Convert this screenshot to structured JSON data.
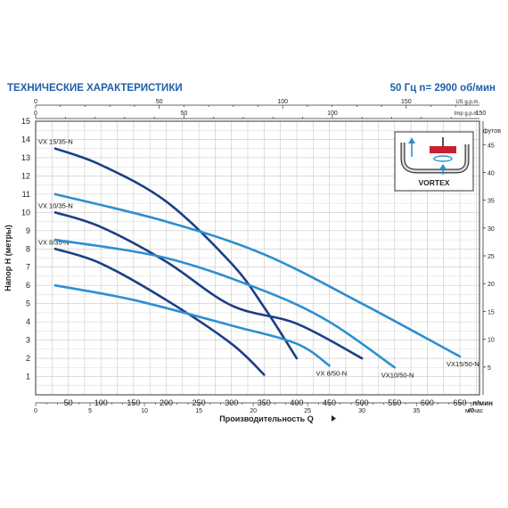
{
  "header": {
    "title": "ТЕХНИЧЕСКИЕ ХАРАКТЕРИСТИКИ",
    "spec": "50 Гц  n= 2900 об/мин"
  },
  "colors": {
    "dark_curve": "#1b3f86",
    "light_curve": "#2d8fd0",
    "grid": "#c8c8c8",
    "frame": "#333333",
    "title": "#1f5fa8"
  },
  "inset": {
    "label": "VORTEX"
  },
  "chart_data": {
    "type": "line",
    "grid": true,
    "xlabel": "Производительность  Q",
    "ylabel": "Напор  H (метры)",
    "xlim_lpm": [
      0,
      680
    ],
    "ylim_m": [
      0,
      15
    ],
    "x_ticks_lpm": [
      50,
      100,
      150,
      200,
      250,
      300,
      350,
      400,
      450,
      500,
      550,
      600,
      650
    ],
    "x_unit_lpm": "л/мин",
    "x_ticks_m3h": [
      0,
      5,
      10,
      15,
      20,
      25,
      30,
      35,
      40
    ],
    "x_unit_m3h": "м³/час",
    "top_ticks_us": [
      0,
      50,
      100,
      150
    ],
    "top_unit_us": "US g.p.m.",
    "top_ticks_imp": [
      0,
      50,
      100,
      150
    ],
    "top_unit_imp": "Imp g.p.m.",
    "y_ticks_m": [
      1,
      2,
      3,
      4,
      5,
      6,
      7,
      8,
      9,
      10,
      11,
      12,
      13,
      14,
      15
    ],
    "y_ticks_ft": [
      5,
      10,
      15,
      20,
      25,
      30,
      35,
      40,
      45
    ],
    "y_unit_ft": "футов",
    "series": [
      {
        "name": "VX 15/35-N",
        "style": "dark",
        "x": [
          30,
          100,
          200,
          300,
          350,
          400
        ],
        "y": [
          13.5,
          12.6,
          10.6,
          7.2,
          4.8,
          2.0
        ],
        "label_end": "start"
      },
      {
        "name": "VX 10/35-N",
        "style": "dark",
        "x": [
          30,
          100,
          200,
          300,
          400,
          500
        ],
        "y": [
          10.0,
          9.2,
          7.3,
          4.9,
          3.9,
          2.0
        ],
        "label_end": "start"
      },
      {
        "name": "VX 8/35-N",
        "style": "dark",
        "x": [
          30,
          100,
          200,
          300,
          350
        ],
        "y": [
          8.0,
          7.2,
          5.2,
          2.8,
          1.1
        ],
        "label_end": "start"
      },
      {
        "name": "VX15/50-N",
        "style": "light",
        "x": [
          30,
          200,
          350,
          500,
          650
        ],
        "y": [
          11.0,
          9.5,
          7.7,
          5.0,
          2.1
        ],
        "label_end": "end"
      },
      {
        "name": "VX10/50-N",
        "style": "light",
        "x": [
          30,
          200,
          350,
          450,
          550
        ],
        "y": [
          8.5,
          7.5,
          5.7,
          4.0,
          1.5
        ],
        "label_end": "end"
      },
      {
        "name": "VX 8/50-N",
        "style": "light",
        "x": [
          30,
          150,
          300,
          400,
          450
        ],
        "y": [
          6.0,
          5.2,
          3.8,
          2.8,
          1.6
        ],
        "label_end": "end"
      }
    ]
  }
}
